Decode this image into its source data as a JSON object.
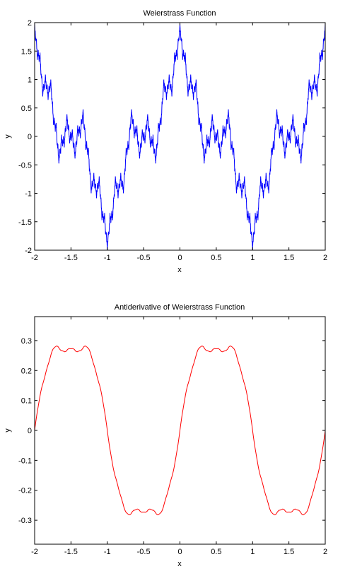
{
  "chart_data": [
    {
      "type": "line",
      "title": "Weierstrass Function",
      "xlabel": "x",
      "ylabel": "y",
      "xlim": [
        -2,
        2
      ],
      "ylim": [
        -2,
        2
      ],
      "xticks": [
        -2,
        -1.5,
        -1,
        -0.5,
        0,
        0.5,
        1,
        1.5,
        2
      ],
      "yticks": [
        -2,
        -1.5,
        -1,
        -0.5,
        0,
        0.5,
        1,
        1.5,
        2
      ],
      "xtick_labels": [
        "-2",
        "-1.5",
        "-1",
        "-0.5",
        "0",
        "0.5",
        "1",
        "1.5",
        "2"
      ],
      "ytick_labels": [
        "-2",
        "-1.5",
        "-1",
        "-0.5",
        "0",
        "0.5",
        "1",
        "1.5",
        "2"
      ],
      "grid": false,
      "series": [
        {
          "color": "#0000ff",
          "function": "sum_{n=0..9} 0.5^n cos(3^n pi x)",
          "x_range": [
            -2,
            2
          ]
        }
      ]
    },
    {
      "type": "line",
      "title": "Antiderivative of Weierstrass Function",
      "xlabel": "x",
      "ylabel": "y",
      "xlim": [
        -2,
        2
      ],
      "ylim": [
        -0.38,
        0.38
      ],
      "xticks": [
        -2,
        -1.5,
        -1,
        -0.5,
        0,
        0.5,
        1,
        1.5,
        2
      ],
      "yticks": [
        -0.3,
        -0.2,
        -0.1,
        0,
        0.1,
        0.2,
        0.3
      ],
      "xtick_labels": [
        "-2",
        "-1.5",
        "-1",
        "-0.5",
        "0",
        "0.5",
        "1",
        "1.5",
        "2"
      ],
      "ytick_labels": [
        "-0.3",
        "-0.2",
        "-0.1",
        "0",
        "0.1",
        "0.2",
        "0.3"
      ],
      "grid": false,
      "series": [
        {
          "color": "#ff0000",
          "function": "sum_{n=0..9} 0.5^n sin(3^n pi x) / (3^n pi)",
          "x_range": [
            -2,
            2
          ]
        }
      ]
    }
  ]
}
